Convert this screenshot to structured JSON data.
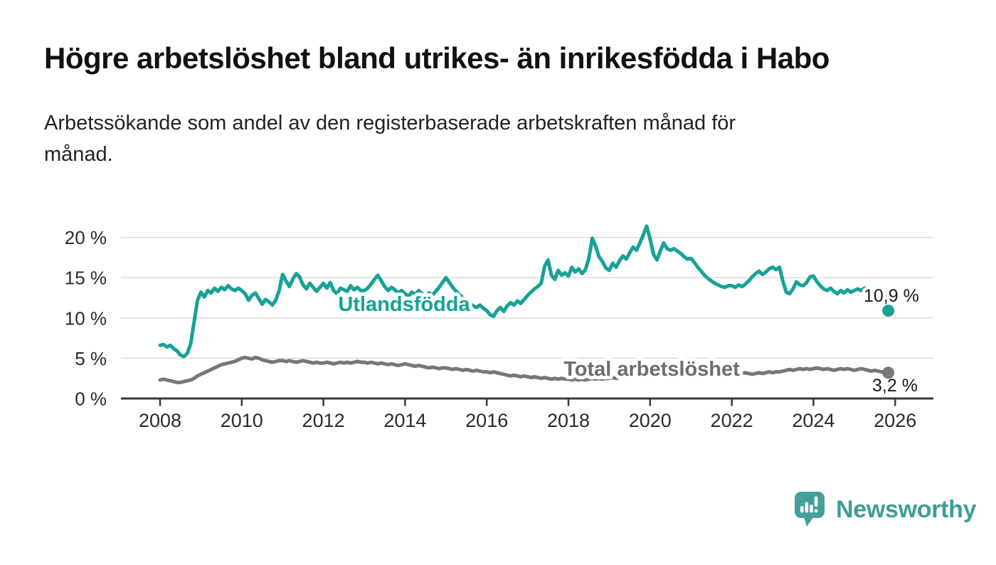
{
  "header": {
    "title": "Högre arbetslöshet bland utrikes- än inrikesfödda i Habo",
    "subtitle_line1": "Arbetssökande som andel av den registerbaserade arbetskraften månad för",
    "subtitle_line2": "månad."
  },
  "chart_data": {
    "type": "line",
    "x_unit": "monthly",
    "x_start_year": 2008,
    "x_end_label": "2025-11",
    "x_ticks": [
      2008,
      2010,
      2012,
      2014,
      2016,
      2018,
      2020,
      2022,
      2024,
      2026
    ],
    "y_ticks": [
      {
        "label": "0 %",
        "value": 0
      },
      {
        "label": "5 %",
        "value": 5
      },
      {
        "label": "10 %",
        "value": 10
      },
      {
        "label": "15 %",
        "value": 15
      },
      {
        "label": "20 %",
        "value": 20
      }
    ],
    "ylim": [
      0,
      22.5
    ],
    "grid": true,
    "legend_position": "inline-labels",
    "series": [
      {
        "name": "Utlandsfödda",
        "color": "#17A296",
        "end_label": "10,9 %",
        "latest_value": 10.9,
        "values": [
          6.6,
          6.7,
          6.4,
          6.6,
          6.2,
          5.9,
          5.4,
          5.2,
          5.6,
          6.8,
          9.5,
          12.2,
          13.2,
          12.6,
          13.4,
          13.1,
          13.7,
          13.3,
          13.8,
          13.5,
          14.0,
          13.6,
          13.4,
          13.7,
          13.4,
          13.0,
          12.2,
          12.8,
          13.1,
          12.4,
          11.7,
          12.3,
          12.0,
          11.6,
          12.2,
          13.4,
          15.4,
          14.6,
          13.9,
          14.8,
          15.5,
          15.1,
          14.1,
          13.6,
          14.3,
          13.8,
          13.3,
          13.8,
          14.3,
          13.7,
          14.4,
          13.4,
          13.0,
          13.7,
          13.5,
          13.3,
          14.0,
          13.5,
          13.8,
          13.4,
          13.4,
          13.7,
          14.2,
          14.8,
          15.3,
          14.6,
          13.9,
          13.4,
          13.8,
          13.5,
          13.1,
          13.4,
          13.0,
          12.7,
          13.2,
          12.9,
          13.4,
          13.0,
          12.6,
          13.1,
          12.8,
          13.3,
          13.8,
          14.4,
          15.0,
          14.4,
          13.8,
          13.3,
          12.9,
          12.5,
          12.1,
          11.8,
          11.5,
          11.3,
          11.6,
          11.2,
          10.9,
          10.4,
          10.2,
          10.9,
          11.3,
          10.8,
          11.5,
          11.9,
          11.6,
          12.1,
          11.8,
          12.3,
          12.8,
          13.2,
          13.6,
          13.9,
          14.3,
          16.4,
          17.2,
          15.3,
          14.8,
          15.9,
          15.3,
          15.6,
          15.2,
          16.3,
          15.7,
          16.1,
          15.5,
          16.0,
          17.4,
          19.9,
          18.9,
          17.6,
          17.0,
          16.2,
          15.9,
          16.8,
          16.3,
          17.1,
          17.7,
          17.3,
          18.1,
          18.8,
          18.4,
          19.3,
          20.3,
          21.4,
          19.8,
          17.9,
          17.2,
          18.3,
          19.3,
          18.6,
          18.4,
          18.6,
          18.3,
          18.0,
          17.6,
          17.3,
          17.4,
          16.9,
          16.3,
          15.8,
          15.3,
          14.9,
          14.6,
          14.3,
          14.1,
          13.9,
          13.8,
          14.0,
          14.0,
          13.8,
          14.1,
          13.9,
          14.2,
          14.6,
          15.1,
          15.5,
          15.8,
          15.4,
          15.7,
          16.1,
          16.3,
          16.0,
          16.3,
          14.6,
          13.2,
          13.0,
          13.6,
          14.5,
          14.1,
          14.0,
          14.4,
          15.1,
          15.2,
          14.5,
          14.0,
          13.6,
          13.4,
          13.7,
          13.3,
          13.0,
          13.4,
          13.1,
          13.5,
          13.2,
          13.4,
          13.6,
          13.4,
          13.7,
          13.5,
          13.2,
          13.0,
          12.8,
          13.1,
          13.0,
          10.9
        ]
      },
      {
        "name": "Total arbetslöshet",
        "color": "#76767B",
        "end_label": "3,2 %",
        "latest_value": 3.2,
        "values": [
          2.3,
          2.4,
          2.3,
          2.2,
          2.1,
          2.0,
          2.0,
          2.1,
          2.2,
          2.3,
          2.5,
          2.8,
          3.0,
          3.2,
          3.4,
          3.6,
          3.8,
          4.0,
          4.2,
          4.3,
          4.4,
          4.5,
          4.6,
          4.8,
          5.0,
          5.1,
          5.0,
          4.9,
          5.1,
          5.0,
          4.8,
          4.7,
          4.6,
          4.5,
          4.6,
          4.7,
          4.7,
          4.6,
          4.7,
          4.6,
          4.5,
          4.6,
          4.7,
          4.6,
          4.5,
          4.4,
          4.5,
          4.4,
          4.4,
          4.5,
          4.4,
          4.3,
          4.4,
          4.5,
          4.4,
          4.5,
          4.4,
          4.5,
          4.6,
          4.5,
          4.5,
          4.4,
          4.5,
          4.4,
          4.3,
          4.4,
          4.3,
          4.2,
          4.3,
          4.2,
          4.1,
          4.2,
          4.3,
          4.2,
          4.1,
          4.0,
          4.1,
          4.0,
          3.9,
          3.8,
          3.9,
          3.8,
          3.7,
          3.8,
          3.8,
          3.7,
          3.6,
          3.7,
          3.6,
          3.5,
          3.6,
          3.5,
          3.4,
          3.5,
          3.4,
          3.3,
          3.3,
          3.2,
          3.3,
          3.2,
          3.1,
          3.0,
          2.9,
          2.8,
          2.9,
          2.8,
          2.7,
          2.8,
          2.7,
          2.6,
          2.7,
          2.6,
          2.5,
          2.6,
          2.5,
          2.4,
          2.5,
          2.4,
          2.5,
          2.4,
          2.4,
          2.3,
          2.4,
          2.3,
          2.4,
          2.3,
          2.4,
          2.5,
          2.4,
          2.5,
          2.4,
          2.5,
          2.5,
          2.6,
          2.5,
          2.6,
          2.7,
          2.6,
          2.7,
          2.8,
          2.7,
          2.8,
          2.9,
          3.0,
          3.2,
          3.4,
          3.6,
          3.7,
          3.6,
          3.5,
          3.6,
          3.5,
          3.4,
          3.5,
          3.4,
          3.3,
          3.3,
          3.2,
          3.3,
          3.2,
          3.1,
          3.0,
          3.1,
          3.0,
          2.9,
          3.0,
          2.9,
          3.0,
          3.0,
          3.1,
          3.0,
          3.1,
          3.2,
          3.1,
          3.0,
          3.1,
          3.2,
          3.1,
          3.2,
          3.3,
          3.2,
          3.3,
          3.3,
          3.4,
          3.5,
          3.6,
          3.5,
          3.6,
          3.7,
          3.6,
          3.7,
          3.6,
          3.7,
          3.8,
          3.7,
          3.6,
          3.7,
          3.6,
          3.5,
          3.6,
          3.7,
          3.6,
          3.7,
          3.6,
          3.5,
          3.6,
          3.7,
          3.6,
          3.5,
          3.4,
          3.5,
          3.4,
          3.3,
          3.3,
          3.2
        ]
      }
    ]
  },
  "footer": {
    "brand": "Newsworthy"
  },
  "colors": {
    "accent_teal": "#17A296",
    "series_gray": "#76767B",
    "logo_teal": "#3F9D96",
    "gridline": "#DBDBDB",
    "axis": "#3A3A3A"
  }
}
